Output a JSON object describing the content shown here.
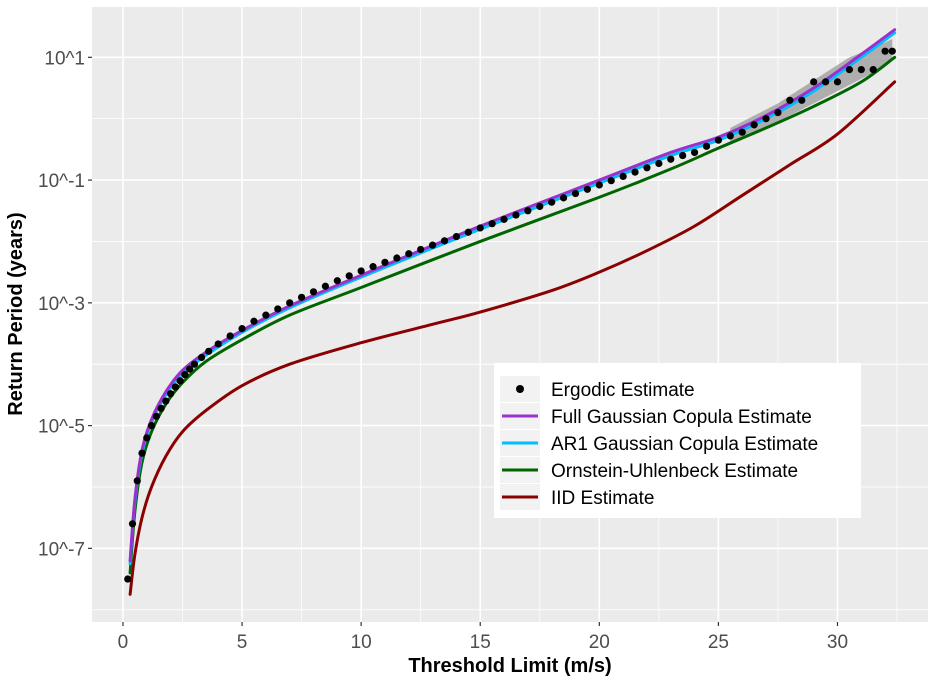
{
  "chart_data": {
    "type": "line",
    "title": "",
    "xlabel": "Threshold Limit (m/s)",
    "ylabel": "Return Period (years)",
    "xlim": [
      -1.3,
      33.8
    ],
    "ylim_log10": [
      -8.2,
      1.82
    ],
    "y_scale": "log10",
    "x_ticks": [
      0,
      5,
      10,
      15,
      20,
      25,
      30
    ],
    "x_tick_labels": [
      "0",
      "5",
      "10",
      "15",
      "20",
      "25",
      "30"
    ],
    "y_ticks_log10": [
      -7,
      -5,
      -3,
      -1,
      1
    ],
    "y_tick_labels": [
      "10^-7",
      "10^-5",
      "10^-3",
      "10^-1",
      "10^1"
    ],
    "grid": true,
    "legend_position": "bottom-right",
    "series": [
      {
        "name": "Full Gaussian Copula Estimate",
        "color": "#9932CC",
        "x": [
          0.3,
          0.5,
          0.8,
          1.2,
          1.8,
          2.5,
          3.5,
          5,
          7,
          10,
          15,
          20,
          23,
          25,
          27,
          29,
          31,
          32.4
        ],
        "log10_y": [
          -7.2,
          -6.2,
          -5.4,
          -4.9,
          -4.45,
          -4.1,
          -3.8,
          -3.45,
          -3.05,
          -2.55,
          -1.75,
          -1.0,
          -0.55,
          -0.3,
          0.05,
          0.5,
          1.05,
          1.45
        ]
      },
      {
        "name": "AR1 Gaussian Copula Estimate",
        "color": "#00BFFF",
        "x": [
          0.3,
          0.5,
          0.8,
          1.2,
          1.8,
          2.5,
          3.5,
          5,
          7,
          10,
          15,
          20,
          23,
          25,
          27,
          29,
          31,
          32.4
        ],
        "log10_y": [
          -7.25,
          -6.25,
          -5.45,
          -4.95,
          -4.5,
          -4.15,
          -3.85,
          -3.48,
          -3.08,
          -2.58,
          -1.8,
          -1.05,
          -0.6,
          -0.35,
          0.0,
          0.45,
          1.0,
          1.4
        ]
      },
      {
        "name": "Ornstein-Uhlenbeck Estimate",
        "color": "#006400",
        "x": [
          0.3,
          0.5,
          0.8,
          1.2,
          1.8,
          2.5,
          3.5,
          5,
          7,
          10,
          15,
          20,
          23,
          25,
          27,
          29,
          31,
          32.4
        ],
        "log10_y": [
          -7.4,
          -6.4,
          -5.6,
          -5.1,
          -4.65,
          -4.3,
          -3.95,
          -3.6,
          -3.2,
          -2.75,
          -2.0,
          -1.28,
          -0.82,
          -0.48,
          -0.15,
          0.2,
          0.6,
          1.0
        ]
      },
      {
        "name": "IID Estimate",
        "color": "#8B0000",
        "x": [
          0.3,
          0.5,
          0.8,
          1.2,
          1.8,
          2.5,
          3.5,
          5,
          7,
          10,
          13,
          15,
          18,
          20,
          22,
          24,
          26,
          28,
          30,
          32.4
        ],
        "log10_y": [
          -7.75,
          -7.1,
          -6.5,
          -6.0,
          -5.5,
          -5.1,
          -4.75,
          -4.35,
          -4.0,
          -3.65,
          -3.35,
          -3.15,
          -2.8,
          -2.5,
          -2.15,
          -1.75,
          -1.25,
          -0.75,
          -0.25,
          0.6
        ]
      }
    ],
    "points": {
      "name": "Ergodic Estimate",
      "color": "#000000",
      "x": [
        0.2,
        0.4,
        0.6,
        0.8,
        1.0,
        1.2,
        1.4,
        1.6,
        1.8,
        2.0,
        2.2,
        2.4,
        2.6,
        2.8,
        3.0,
        3.3,
        3.6,
        4.0,
        4.5,
        5.0,
        5.5,
        6.0,
        6.5,
        7.0,
        7.5,
        8.0,
        8.5,
        9.0,
        9.5,
        10.0,
        10.5,
        11.0,
        11.5,
        12.0,
        12.5,
        13.0,
        13.5,
        14.0,
        14.5,
        15.0,
        15.5,
        16.0,
        16.5,
        17.0,
        17.5,
        18.0,
        18.5,
        19.0,
        19.5,
        20.0,
        20.5,
        21.0,
        21.5,
        22.0,
        22.5,
        23.0,
        23.5,
        24.0,
        24.5,
        25.0,
        25.5,
        26.0,
        26.5,
        27.0,
        27.5,
        28.0,
        28.5,
        29.0,
        29.5,
        30.0,
        30.5,
        31.0,
        31.5,
        32.0,
        32.3
      ],
      "log10_y": [
        -7.5,
        -6.6,
        -5.9,
        -5.45,
        -5.2,
        -5.0,
        -4.85,
        -4.72,
        -4.6,
        -4.48,
        -4.37,
        -4.27,
        -4.17,
        -4.08,
        -4.0,
        -3.89,
        -3.79,
        -3.67,
        -3.54,
        -3.42,
        -3.3,
        -3.2,
        -3.1,
        -3.0,
        -2.91,
        -2.82,
        -2.73,
        -2.64,
        -2.56,
        -2.48,
        -2.41,
        -2.34,
        -2.27,
        -2.2,
        -2.13,
        -2.06,
        -1.99,
        -1.92,
        -1.85,
        -1.78,
        -1.71,
        -1.64,
        -1.57,
        -1.5,
        -1.43,
        -1.36,
        -1.29,
        -1.22,
        -1.15,
        -1.08,
        -1.01,
        -0.94,
        -0.87,
        -0.8,
        -0.73,
        -0.66,
        -0.6,
        -0.55,
        -0.45,
        -0.35,
        -0.28,
        -0.22,
        -0.1,
        0.0,
        0.1,
        0.3,
        0.3,
        0.6,
        0.6,
        0.6,
        0.8,
        0.8,
        0.8,
        1.1,
        1.1
      ]
    },
    "band": {
      "x": [
        25.5,
        26.5,
        27.5,
        28.5,
        29.5,
        30.5,
        31.5,
        32.3
      ],
      "lower_log10": [
        -0.4,
        -0.25,
        -0.05,
        0.15,
        0.35,
        0.55,
        0.75,
        0.95
      ],
      "upper_log10": [
        -0.15,
        0.05,
        0.25,
        0.5,
        0.75,
        1.0,
        1.15,
        1.3
      ]
    }
  },
  "legend": {
    "items": [
      {
        "label": "Ergodic Estimate",
        "kind": "point",
        "color": "#000000"
      },
      {
        "label": "Full Gaussian Copula Estimate",
        "kind": "line",
        "color": "#9932CC"
      },
      {
        "label": "AR1 Gaussian Copula Estimate",
        "kind": "line",
        "color": "#00BFFF"
      },
      {
        "label": "Ornstein-Uhlenbeck Estimate",
        "kind": "line",
        "color": "#006400"
      },
      {
        "label": "IID Estimate",
        "kind": "line",
        "color": "#8B0000"
      }
    ]
  },
  "colors": {
    "panel": "#EBEBEB",
    "grid_major": "#FFFFFF",
    "band": "#999999"
  }
}
